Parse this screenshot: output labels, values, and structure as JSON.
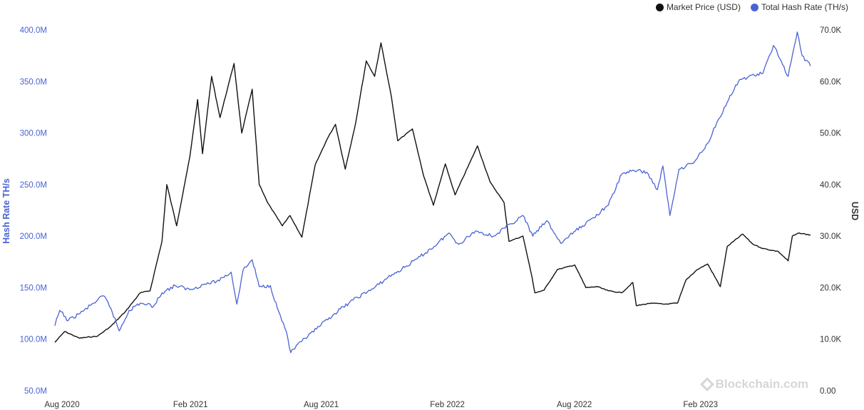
{
  "legend": {
    "price_label": "Market Price (USD)",
    "hash_label": "Total Hash Rate (TH/s)"
  },
  "watermark": "Blockchain.com",
  "colors": {
    "price": "#111111",
    "hash": "#4a63d3",
    "left_axis": "#4a63d3",
    "right_axis": "#333333"
  },
  "chart_data": {
    "type": "line",
    "x_ticks": [
      "Aug 2020",
      "Feb 2021",
      "Aug 2021",
      "Feb 2022",
      "Aug 2022",
      "Feb 2023"
    ],
    "y_left": {
      "label": "Hash Rate TH/s",
      "range": [
        50000000,
        400000000
      ],
      "ticks": [
        "50.0M",
        "100.0M",
        "150.0M",
        "200.0M",
        "250.0M",
        "300.0M",
        "350.0M",
        "400.0M"
      ]
    },
    "y_right": {
      "label": "USD",
      "range": [
        0,
        70000
      ],
      "ticks": [
        "0.00",
        "10.0K",
        "20.0K",
        "30.0K",
        "40.0K",
        "50.0K",
        "60.0K",
        "70.0K"
      ]
    },
    "x_range": [
      "2020-08-01",
      "2023-07-17"
    ],
    "series": [
      {
        "name": "Market Price (USD)",
        "axis": "right",
        "color": "#111111",
        "points": [
          [
            "2020-08-01",
            9400
          ],
          [
            "2020-08-15",
            11500
          ],
          [
            "2020-09-05",
            10200
          ],
          [
            "2020-10-01",
            10600
          ],
          [
            "2020-10-20",
            12500
          ],
          [
            "2020-11-10",
            15400
          ],
          [
            "2020-12-01",
            19000
          ],
          [
            "2020-12-15",
            19400
          ],
          [
            "2021-01-01",
            29000
          ],
          [
            "2021-01-08",
            40000
          ],
          [
            "2021-01-22",
            32000
          ],
          [
            "2021-02-10",
            45500
          ],
          [
            "2021-02-21",
            56500
          ],
          [
            "2021-02-28",
            46000
          ],
          [
            "2021-03-13",
            61000
          ],
          [
            "2021-03-25",
            53000
          ],
          [
            "2021-04-14",
            63500
          ],
          [
            "2021-04-25",
            50000
          ],
          [
            "2021-05-10",
            58500
          ],
          [
            "2021-05-20",
            40000
          ],
          [
            "2021-06-01",
            36500
          ],
          [
            "2021-06-22",
            32000
          ],
          [
            "2021-07-03",
            34000
          ],
          [
            "2021-07-20",
            29800
          ],
          [
            "2021-08-08",
            43800
          ],
          [
            "2021-08-25",
            48800
          ],
          [
            "2021-09-06",
            51700
          ],
          [
            "2021-09-20",
            43000
          ],
          [
            "2021-10-05",
            52000
          ],
          [
            "2021-10-20",
            64000
          ],
          [
            "2021-11-01",
            61000
          ],
          [
            "2021-11-10",
            67500
          ],
          [
            "2021-11-25",
            57000
          ],
          [
            "2021-12-04",
            48500
          ],
          [
            "2021-12-25",
            50800
          ],
          [
            "2022-01-10",
            41700
          ],
          [
            "2022-01-24",
            36000
          ],
          [
            "2022-02-10",
            44000
          ],
          [
            "2022-02-24",
            38000
          ],
          [
            "2022-03-28",
            47500
          ],
          [
            "2022-04-15",
            40500
          ],
          [
            "2022-05-05",
            36500
          ],
          [
            "2022-05-12",
            29000
          ],
          [
            "2022-06-01",
            30000
          ],
          [
            "2022-06-14",
            22000
          ],
          [
            "2022-06-18",
            19000
          ],
          [
            "2022-07-01",
            19500
          ],
          [
            "2022-07-20",
            23500
          ],
          [
            "2022-08-14",
            24400
          ],
          [
            "2022-08-30",
            20000
          ],
          [
            "2022-09-15",
            20200
          ],
          [
            "2022-10-01",
            19400
          ],
          [
            "2022-10-20",
            19000
          ],
          [
            "2022-11-05",
            21000
          ],
          [
            "2022-11-10",
            16500
          ],
          [
            "2022-12-01",
            17000
          ],
          [
            "2022-12-20",
            16800
          ],
          [
            "2023-01-08",
            17000
          ],
          [
            "2023-01-20",
            21500
          ],
          [
            "2023-02-05",
            23500
          ],
          [
            "2023-02-20",
            24600
          ],
          [
            "2023-03-10",
            20200
          ],
          [
            "2023-03-20",
            28000
          ],
          [
            "2023-04-11",
            30400
          ],
          [
            "2023-04-25",
            28500
          ],
          [
            "2023-05-10",
            27600
          ],
          [
            "2023-06-01",
            27000
          ],
          [
            "2023-06-15",
            25200
          ],
          [
            "2023-06-21",
            30000
          ],
          [
            "2023-07-01",
            30600
          ],
          [
            "2023-07-17",
            30200
          ]
        ]
      },
      {
        "name": "Total Hash Rate (TH/s)",
        "axis": "left",
        "color": "#4a63d3",
        "points": [
          [
            "2020-08-01",
            113000000
          ],
          [
            "2020-08-08",
            128000000
          ],
          [
            "2020-08-20",
            118000000
          ],
          [
            "2020-09-10",
            127000000
          ],
          [
            "2020-09-25",
            135000000
          ],
          [
            "2020-10-10",
            142000000
          ],
          [
            "2020-10-20",
            130000000
          ],
          [
            "2020-11-01",
            108000000
          ],
          [
            "2020-11-15",
            128000000
          ],
          [
            "2020-12-01",
            135000000
          ],
          [
            "2020-12-20",
            132000000
          ],
          [
            "2021-01-01",
            145000000
          ],
          [
            "2021-01-20",
            152000000
          ],
          [
            "2021-02-10",
            148000000
          ],
          [
            "2021-03-01",
            153000000
          ],
          [
            "2021-03-20",
            156000000
          ],
          [
            "2021-04-10",
            165000000
          ],
          [
            "2021-04-18",
            134000000
          ],
          [
            "2021-04-27",
            167000000
          ],
          [
            "2021-05-10",
            177000000
          ],
          [
            "2021-05-20",
            151000000
          ],
          [
            "2021-06-05",
            152000000
          ],
          [
            "2021-06-15",
            130000000
          ],
          [
            "2021-06-28",
            107000000
          ],
          [
            "2021-07-04",
            87000000
          ],
          [
            "2021-07-20",
            98000000
          ],
          [
            "2021-08-10",
            110000000
          ],
          [
            "2021-09-05",
            125000000
          ],
          [
            "2021-10-01",
            138000000
          ],
          [
            "2021-11-01",
            150000000
          ],
          [
            "2021-11-20",
            160000000
          ],
          [
            "2021-12-10",
            168000000
          ],
          [
            "2022-01-01",
            178000000
          ],
          [
            "2022-01-25",
            190000000
          ],
          [
            "2022-02-15",
            203000000
          ],
          [
            "2022-03-01",
            192000000
          ],
          [
            "2022-03-25",
            205000000
          ],
          [
            "2022-04-20",
            200000000
          ],
          [
            "2022-05-15",
            212000000
          ],
          [
            "2022-06-01",
            220000000
          ],
          [
            "2022-06-15",
            200000000
          ],
          [
            "2022-07-05",
            215000000
          ],
          [
            "2022-07-25",
            193000000
          ],
          [
            "2022-08-15",
            205000000
          ],
          [
            "2022-09-10",
            218000000
          ],
          [
            "2022-10-01",
            230000000
          ],
          [
            "2022-10-20",
            260000000
          ],
          [
            "2022-11-05",
            264000000
          ],
          [
            "2022-11-25",
            262000000
          ],
          [
            "2022-12-10",
            245000000
          ],
          [
            "2022-12-18",
            268000000
          ],
          [
            "2022-12-28",
            220000000
          ],
          [
            "2023-01-10",
            265000000
          ],
          [
            "2023-02-01",
            272000000
          ],
          [
            "2023-02-20",
            290000000
          ],
          [
            "2023-03-05",
            310000000
          ],
          [
            "2023-03-20",
            330000000
          ],
          [
            "2023-04-05",
            350000000
          ],
          [
            "2023-04-20",
            355000000
          ],
          [
            "2023-05-10",
            358000000
          ],
          [
            "2023-05-25",
            385000000
          ],
          [
            "2023-06-05",
            370000000
          ],
          [
            "2023-06-15",
            355000000
          ],
          [
            "2023-06-28",
            398000000
          ],
          [
            "2023-07-05",
            375000000
          ],
          [
            "2023-07-17",
            365000000
          ]
        ]
      }
    ],
    "grid": false,
    "legend_position": "top-right"
  }
}
